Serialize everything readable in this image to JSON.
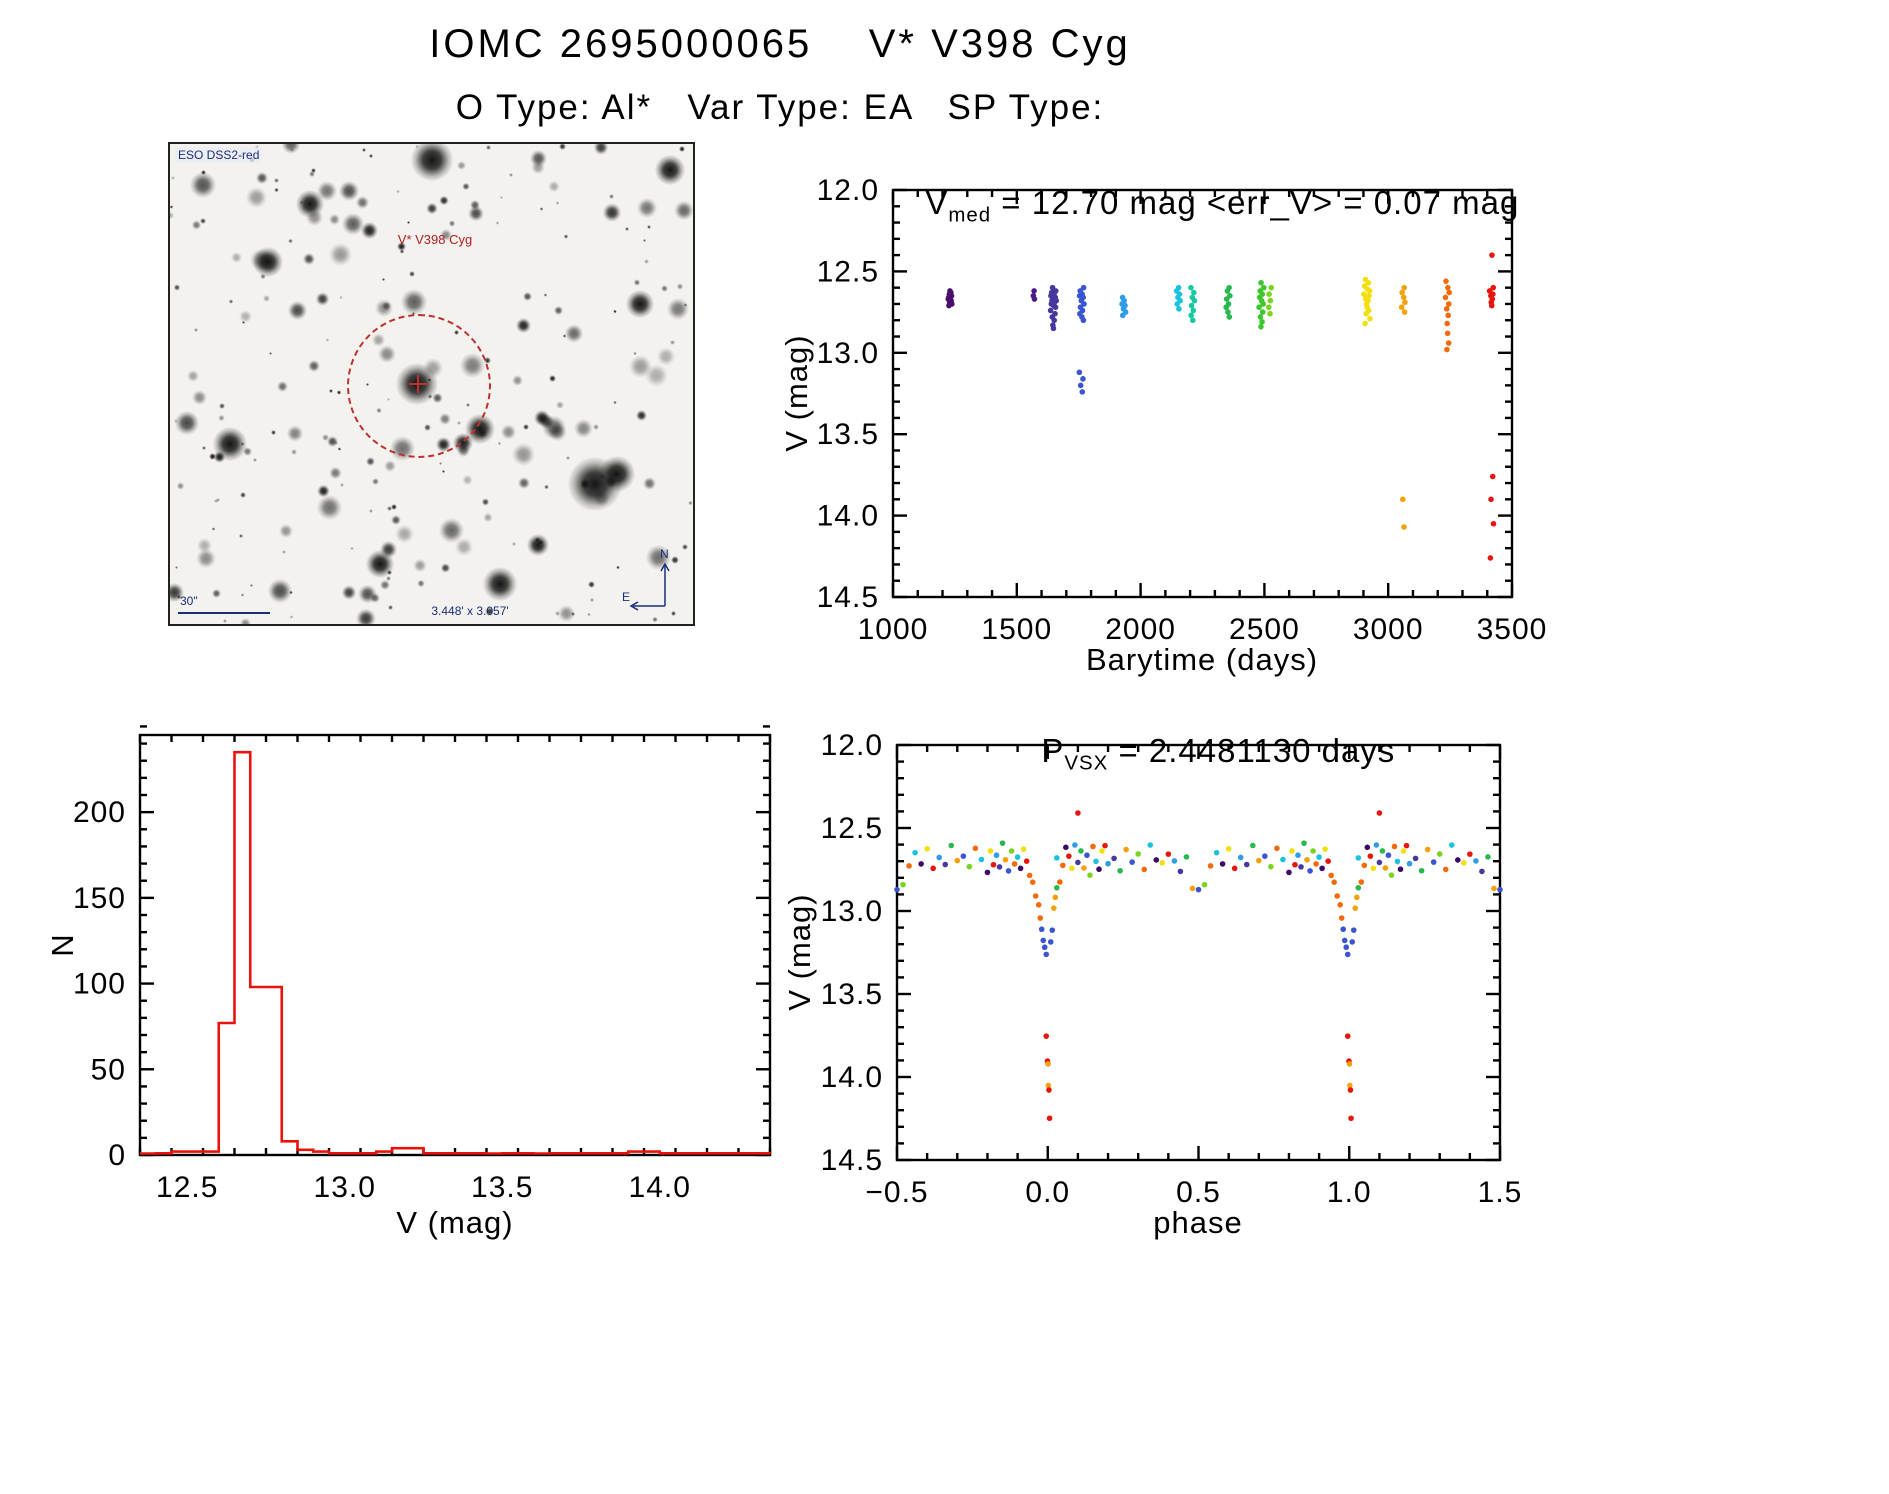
{
  "page": {
    "title": "IOMC 2695000065    V* V398 Cyg",
    "subtitle": "O Type: Al*   Var Type: EA   SP Type:"
  },
  "finder": {
    "survey_label": "ESO DSS2-red",
    "target_label": "V* V398 Cyg",
    "scale_label": "30\"",
    "fov_label": "3.448' x 3.057'",
    "compass_north": "N",
    "compass_east": "E",
    "circle_color": "#c03030",
    "stars": {
      "seed": 11,
      "count": 240
    },
    "bright": [
      [
        247,
        240,
        15
      ],
      [
        425,
        340,
        19
      ],
      [
        447,
        330,
        13
      ],
      [
        262,
        16,
        15
      ],
      [
        98,
        118,
        11
      ],
      [
        310,
        285,
        11
      ],
      [
        500,
        26,
        11
      ],
      [
        60,
        300,
        12
      ],
      [
        330,
        440,
        12
      ],
      [
        210,
        420,
        10
      ],
      [
        140,
        60,
        10
      ],
      [
        470,
        160,
        10
      ]
    ]
  },
  "chart_data": [
    {
      "id": "lightcurve",
      "type": "scatter",
      "title": {
        "prefix": "V",
        "sub": "med",
        "rest": " = 12.70 mag <err_V> = 0.07 mag"
      },
      "xlabel": "Barytime (days)",
      "ylabel": "V (mag)",
      "xlim": [
        1000,
        3500
      ],
      "ytop": 12.0,
      "ybot": 14.5,
      "xticks": [
        1000,
        1500,
        2000,
        2500,
        3000,
        3500
      ],
      "yticks": [
        12.0,
        12.5,
        13.0,
        13.5,
        14.0,
        14.5
      ],
      "xminor": 100,
      "yminor": 0.1,
      "xdec": 0,
      "ydec": 1,
      "groups": [
        {
          "x": 1230,
          "jx": 8,
          "color": "#4a0f6e",
          "v": [
            12.62,
            12.63,
            12.64,
            12.65,
            12.66,
            12.66,
            12.67,
            12.68,
            12.69,
            12.7,
            12.71
          ]
        },
        {
          "x": 1568,
          "jx": 4,
          "color": "#4a1a86",
          "v": [
            12.62,
            12.65,
            12.67
          ]
        },
        {
          "x": 1648,
          "jx": 12,
          "color": "#46399e",
          "v": [
            12.6,
            12.62,
            12.63,
            12.64,
            12.65,
            12.66,
            12.67,
            12.68,
            12.68,
            12.69,
            12.7,
            12.71,
            12.72,
            12.74,
            12.76,
            12.78,
            12.8,
            12.83,
            12.85
          ]
        },
        {
          "x": 1762,
          "jx": 10,
          "color": "#3a55cf",
          "v": [
            12.6,
            12.62,
            12.64,
            12.65,
            12.66,
            12.68,
            12.7,
            12.72,
            12.74,
            12.76,
            12.78,
            12.8,
            13.12,
            13.16,
            13.2,
            13.24
          ]
        },
        {
          "x": 1932,
          "jx": 8,
          "color": "#2f9ce8",
          "v": [
            12.66,
            12.68,
            12.7,
            12.71,
            12.73,
            12.75,
            12.77
          ]
        },
        {
          "x": 2152,
          "jx": 8,
          "color": "#19c3de",
          "v": [
            12.6,
            12.62,
            12.64,
            12.66,
            12.68,
            12.7,
            12.73
          ]
        },
        {
          "x": 2210,
          "jx": 8,
          "color": "#17c9a0",
          "v": [
            12.6,
            12.63,
            12.66,
            12.68,
            12.71,
            12.74,
            12.77,
            12.8
          ]
        },
        {
          "x": 2352,
          "jx": 9,
          "color": "#27b84e",
          "v": [
            12.6,
            12.62,
            12.65,
            12.67,
            12.7,
            12.72,
            12.75,
            12.78
          ]
        },
        {
          "x": 2488,
          "jx": 10,
          "color": "#3cc72e",
          "v": [
            12.57,
            12.6,
            12.62,
            12.64,
            12.66,
            12.68,
            12.7,
            12.72,
            12.75,
            12.78,
            12.81,
            12.84
          ]
        },
        {
          "x": 2522,
          "jx": 6,
          "color": "#7ad41f",
          "v": [
            12.6,
            12.64,
            12.68,
            12.72,
            12.76
          ]
        },
        {
          "x": 2915,
          "jx": 14,
          "color": "#f2df0c",
          "v": [
            12.55,
            12.57,
            12.59,
            12.61,
            12.62,
            12.64,
            12.65,
            12.67,
            12.68,
            12.7,
            12.72,
            12.74,
            12.76,
            12.79,
            12.82
          ]
        },
        {
          "x": 3062,
          "jx": 8,
          "color": "#f5a009",
          "v": [
            12.6,
            12.63,
            12.66,
            12.69,
            12.72,
            12.75,
            13.9,
            14.07
          ]
        },
        {
          "x": 3240,
          "jx": 9,
          "color": "#f26a0a",
          "v": [
            12.56,
            12.6,
            12.63,
            12.66,
            12.7,
            12.73,
            12.77,
            12.82,
            12.88,
            12.94,
            12.98
          ]
        },
        {
          "x": 3418,
          "jx": 9,
          "color": "#e8150d",
          "v": [
            12.4,
            12.6,
            12.62,
            12.64,
            12.65,
            12.67,
            12.69,
            12.71,
            13.76,
            13.9,
            14.05,
            14.26
          ]
        }
      ]
    },
    {
      "id": "histogram",
      "type": "histogram",
      "xlabel": "V (mag)",
      "ylabel": "N",
      "xlim": [
        12.35,
        14.35
      ],
      "ytop": 245,
      "ybot": 0,
      "xticks": [
        12.5,
        13.0,
        13.5,
        14.0
      ],
      "yticks": [
        0,
        50,
        100,
        150,
        200
      ],
      "xminor": 0.1,
      "yminor": 10,
      "xdec": 1,
      "ydec": 0,
      "color": "#e8140c",
      "bin_width": 0.05,
      "bins": [
        {
          "x": 12.4,
          "n": 1
        },
        {
          "x": 12.45,
          "n": 2
        },
        {
          "x": 12.5,
          "n": 2
        },
        {
          "x": 12.55,
          "n": 2
        },
        {
          "x": 12.6,
          "n": 77
        },
        {
          "x": 12.65,
          "n": 235
        },
        {
          "x": 12.7,
          "n": 98
        },
        {
          "x": 12.75,
          "n": 98
        },
        {
          "x": 12.8,
          "n": 8
        },
        {
          "x": 12.85,
          "n": 3
        },
        {
          "x": 12.9,
          "n": 2
        },
        {
          "x": 12.95,
          "n": 1
        },
        {
          "x": 13.0,
          "n": 1
        },
        {
          "x": 13.05,
          "n": 1
        },
        {
          "x": 13.1,
          "n": 2
        },
        {
          "x": 13.15,
          "n": 4
        },
        {
          "x": 13.2,
          "n": 4
        },
        {
          "x": 13.25,
          "n": 1
        },
        {
          "x": 13.3,
          "n": 1
        },
        {
          "x": 13.35,
          "n": 1
        },
        {
          "x": 13.4,
          "n": 1
        },
        {
          "x": 13.45,
          "n": 0
        },
        {
          "x": 13.5,
          "n": 1
        },
        {
          "x": 13.55,
          "n": 1
        },
        {
          "x": 13.6,
          "n": 0
        },
        {
          "x": 13.65,
          "n": 1
        },
        {
          "x": 13.7,
          "n": 1
        },
        {
          "x": 13.75,
          "n": 1
        },
        {
          "x": 13.8,
          "n": 1
        },
        {
          "x": 13.85,
          "n": 1
        },
        {
          "x": 13.9,
          "n": 2
        },
        {
          "x": 13.95,
          "n": 2
        },
        {
          "x": 14.0,
          "n": 1
        },
        {
          "x": 14.05,
          "n": 1
        },
        {
          "x": 14.1,
          "n": 1
        },
        {
          "x": 14.15,
          "n": 1
        },
        {
          "x": 14.2,
          "n": 1
        },
        {
          "x": 14.25,
          "n": 1
        },
        {
          "x": 14.3,
          "n": 1
        }
      ]
    },
    {
      "id": "phase",
      "type": "scatter-phase",
      "title": {
        "prefix": "P",
        "sub": "VSX",
        "rest": " = 2.4481130 days"
      },
      "xlabel": "phase",
      "ylabel": "V (mag)",
      "xlim": [
        -0.5,
        1.5
      ],
      "ytop": 12.0,
      "ybot": 14.5,
      "xticks": [
        -0.5,
        0.0,
        0.5,
        1.0,
        1.5
      ],
      "yticks": [
        12.0,
        12.5,
        13.0,
        13.5,
        14.0,
        14.5
      ],
      "xminor": 0.1,
      "yminor": 0.1,
      "xdec": 1,
      "ydec": 1,
      "palette": [
        "#3d0965",
        "#46399e",
        "#3a55cf",
        "#2f9ce8",
        "#19c3de",
        "#27b84e",
        "#7ad41f",
        "#f2df0c",
        "#f5a009",
        "#f26a0a",
        "#e8150d",
        "#5b4bd8"
      ],
      "points": [
        [
          0.03,
          12.68,
          4
        ],
        [
          0.05,
          12.72,
          9
        ],
        [
          0.06,
          12.62,
          0
        ],
        [
          0.07,
          12.66,
          10
        ],
        [
          0.08,
          12.75,
          7
        ],
        [
          0.09,
          12.6,
          3
        ],
        [
          0.1,
          12.42,
          10
        ],
        [
          0.1,
          12.7,
          1
        ],
        [
          0.11,
          12.64,
          5
        ],
        [
          0.12,
          12.73,
          8
        ],
        [
          0.13,
          12.67,
          2
        ],
        [
          0.14,
          12.78,
          6
        ],
        [
          0.15,
          12.62,
          9
        ],
        [
          0.16,
          12.7,
          4
        ],
        [
          0.17,
          12.74,
          0
        ],
        [
          0.18,
          12.65,
          7
        ],
        [
          0.19,
          12.6,
          10
        ],
        [
          0.2,
          12.72,
          3
        ],
        [
          0.22,
          12.68,
          1
        ],
        [
          0.24,
          12.76,
          5
        ],
        [
          0.26,
          12.63,
          8
        ],
        [
          0.28,
          12.7,
          2
        ],
        [
          0.3,
          12.66,
          6
        ],
        [
          0.32,
          12.74,
          9
        ],
        [
          0.34,
          12.61,
          4
        ],
        [
          0.36,
          12.69,
          0
        ],
        [
          0.38,
          12.72,
          7
        ],
        [
          0.4,
          12.65,
          10
        ],
        [
          0.42,
          12.7,
          3
        ],
        [
          0.44,
          12.75,
          1
        ],
        [
          0.46,
          12.68,
          5
        ],
        [
          0.48,
          12.86,
          8
        ],
        [
          0.5,
          12.88,
          2
        ],
        [
          0.52,
          12.84,
          6
        ],
        [
          0.54,
          12.72,
          9
        ],
        [
          0.56,
          12.66,
          4
        ],
        [
          0.58,
          12.71,
          0
        ],
        [
          0.6,
          12.63,
          7
        ],
        [
          0.62,
          12.74,
          10
        ],
        [
          0.64,
          12.68,
          3
        ],
        [
          0.66,
          12.72,
          1
        ],
        [
          0.68,
          12.6,
          5
        ],
        [
          0.7,
          12.7,
          8
        ],
        [
          0.72,
          12.66,
          2
        ],
        [
          0.74,
          12.74,
          6
        ],
        [
          0.76,
          12.62,
          9
        ],
        [
          0.78,
          12.7,
          4
        ],
        [
          0.8,
          12.76,
          0
        ],
        [
          0.81,
          12.64,
          7
        ],
        [
          0.82,
          12.71,
          10
        ],
        [
          0.83,
          12.67,
          3
        ],
        [
          0.84,
          12.73,
          1
        ],
        [
          0.85,
          12.6,
          5
        ],
        [
          0.86,
          12.69,
          8
        ],
        [
          0.87,
          12.75,
          2
        ],
        [
          0.88,
          12.65,
          6
        ],
        [
          0.89,
          12.71,
          9
        ],
        [
          0.9,
          12.68,
          4
        ],
        [
          0.91,
          12.74,
          0
        ],
        [
          0.92,
          12.63,
          7
        ],
        [
          0.93,
          12.7,
          10
        ],
        [
          0.94,
          12.78,
          9
        ],
        [
          0.95,
          12.83,
          9
        ],
        [
          0.96,
          12.9,
          9
        ],
        [
          0.97,
          12.97,
          9
        ],
        [
          0.975,
          13.04,
          9
        ],
        [
          0.98,
          13.12,
          2
        ],
        [
          0.985,
          13.17,
          2
        ],
        [
          0.99,
          13.22,
          2
        ],
        [
          0.995,
          13.25,
          2
        ],
        [
          0.995,
          13.76,
          10
        ],
        [
          0.999,
          13.9,
          10
        ],
        [
          0.001,
          13.93,
          8
        ],
        [
          0.002,
          14.05,
          8
        ],
        [
          0.004,
          14.07,
          10
        ],
        [
          0.006,
          14.26,
          10
        ],
        [
          0.01,
          13.18,
          2
        ],
        [
          0.015,
          13.12,
          2
        ],
        [
          0.02,
          12.98,
          8
        ],
        [
          0.025,
          12.92,
          8
        ],
        [
          0.03,
          12.86,
          5
        ],
        [
          0.04,
          12.82,
          9
        ]
      ]
    }
  ]
}
